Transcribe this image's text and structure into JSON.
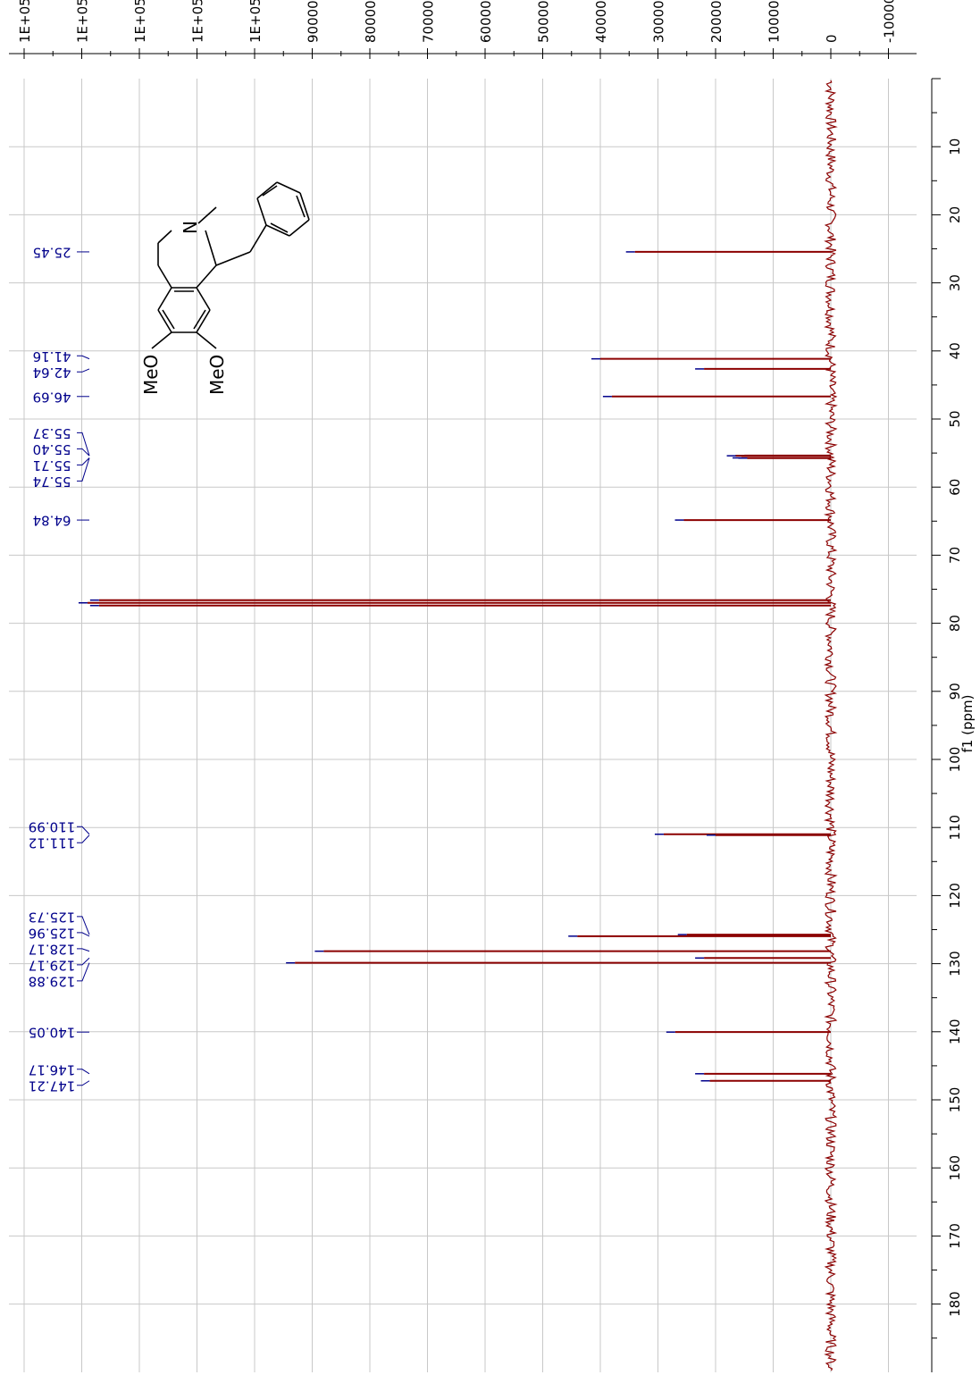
{
  "chart_data": {
    "type": "line",
    "x_axis_label": "f1 (ppm)",
    "x_range": [
      190,
      0
    ],
    "x_ticks": [
      10,
      20,
      30,
      40,
      50,
      60,
      70,
      80,
      90,
      100,
      110,
      120,
      130,
      140,
      150,
      160,
      170,
      180
    ],
    "intensity_range": [
      -15000,
      155000
    ],
    "intensity_ticks": [
      {
        "value": 150000,
        "label": "1E+05"
      },
      {
        "value": 140000,
        "label": "1E+05"
      },
      {
        "value": 130000,
        "label": "1E+05"
      },
      {
        "value": 120000,
        "label": "1E+05"
      },
      {
        "value": 110000,
        "label": "1E+05"
      },
      {
        "value": 100000,
        "label": "90000"
      },
      {
        "value": 90000,
        "label": "80000"
      },
      {
        "value": 80000,
        "label": "70000"
      },
      {
        "value": 70000,
        "label": "60000"
      },
      {
        "value": 60000,
        "label": "50000"
      },
      {
        "value": 50000,
        "label": "40000"
      },
      {
        "value": 40000,
        "label": "30000"
      },
      {
        "value": 30000,
        "label": "20000"
      },
      {
        "value": 20000,
        "label": "10000"
      },
      {
        "value": 10000,
        "label": "0"
      },
      {
        "value": 0,
        "label": "-10000"
      }
    ],
    "grid": true,
    "orientation": "rotated-90",
    "series": [
      {
        "color": "#8b0000",
        "peaks": [
          {
            "ppm": 25.45,
            "intensity": 34000
          },
          {
            "ppm": 41.16,
            "intensity": 40000
          },
          {
            "ppm": 42.64,
            "intensity": 22000
          },
          {
            "ppm": 46.69,
            "intensity": 38000
          },
          {
            "ppm": 55.37,
            "intensity": 15000
          },
          {
            "ppm": 55.4,
            "intensity": 16500
          },
          {
            "ppm": 55.71,
            "intensity": 15500
          },
          {
            "ppm": 55.74,
            "intensity": 14500
          },
          {
            "ppm": 64.84,
            "intensity": 25500
          },
          {
            "ppm": 76.6,
            "intensity": 127000
          },
          {
            "ppm": 77.0,
            "intensity": 129000
          },
          {
            "ppm": 77.4,
            "intensity": 127000
          },
          {
            "ppm": 110.99,
            "intensity": 29000
          },
          {
            "ppm": 111.12,
            "intensity": 20000
          },
          {
            "ppm": 125.73,
            "intensity": 25000
          },
          {
            "ppm": 125.96,
            "intensity": 44000
          },
          {
            "ppm": 128.17,
            "intensity": 88000
          },
          {
            "ppm": 129.17,
            "intensity": 22000
          },
          {
            "ppm": 129.88,
            "intensity": 93000
          },
          {
            "ppm": 140.05,
            "intensity": 27000
          },
          {
            "ppm": 146.17,
            "intensity": 22000
          },
          {
            "ppm": 147.21,
            "intensity": 21000
          }
        ]
      }
    ],
    "peak_labels": [
      {
        "group": [
          25.45
        ],
        "labels": [
          "25.45"
        ]
      },
      {
        "group": [
          41.16,
          42.64
        ],
        "labels": [
          "41.16",
          "42.64"
        ]
      },
      {
        "group": [
          46.69
        ],
        "labels": [
          "46.69"
        ]
      },
      {
        "group": [
          55.37,
          55.4,
          55.71,
          55.74
        ],
        "labels": [
          "55.37",
          "55.40",
          "55.71",
          "55.74"
        ]
      },
      {
        "group": [
          64.84
        ],
        "labels": [
          "64.84"
        ]
      },
      {
        "group": [
          110.99,
          111.12
        ],
        "labels": [
          "110.99",
          "111.12"
        ]
      },
      {
        "group": [
          125.73,
          125.96,
          128.17,
          129.17,
          129.88
        ],
        "labels": [
          "125.73",
          "125.96",
          "128.17",
          "129.17",
          "129.88"
        ]
      },
      {
        "group": [
          140.05
        ],
        "labels": [
          "140.05"
        ]
      },
      {
        "group": [
          146.17,
          147.21
        ],
        "labels": [
          "146.17",
          "147.21"
        ]
      }
    ]
  },
  "structure": {
    "atom_labels": [
      "N",
      "MeO",
      "MeO"
    ]
  },
  "colors": {
    "spectrum": "#8b0000",
    "peak_label": "#00008b",
    "grid": "#c8c8c8",
    "axis": "#000000"
  }
}
